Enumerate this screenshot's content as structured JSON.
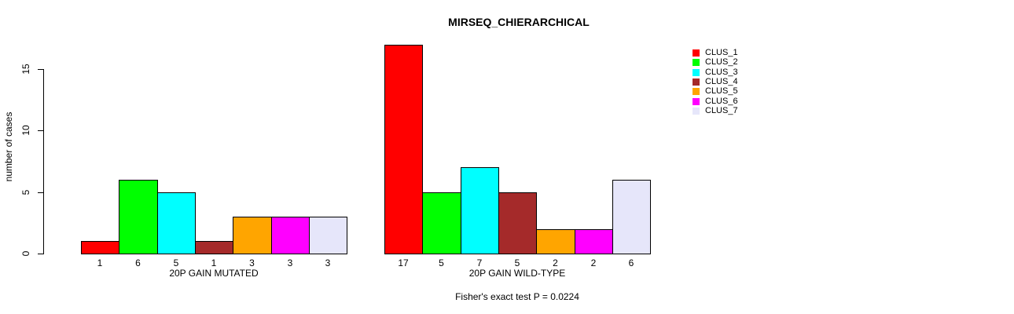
{
  "chart_data": {
    "type": "bar",
    "title": "MIRSEQ_CHIERARCHICAL",
    "ylabel": "number of cases",
    "xlabel": "",
    "yticks": [
      0,
      5,
      10,
      15
    ],
    "ylim": [
      0,
      15
    ],
    "grid": false,
    "legend_position": "right",
    "bar_value_labels_shown": true,
    "categories": [
      "20P GAIN MUTATED",
      "20P GAIN WILD-TYPE"
    ],
    "series": [
      {
        "name": "CLUS_1",
        "color": "#FF0000",
        "values": [
          1,
          17
        ]
      },
      {
        "name": "CLUS_2",
        "color": "#00FF00",
        "values": [
          6,
          5
        ]
      },
      {
        "name": "CLUS_3",
        "color": "#00FFFF",
        "values": [
          5,
          7
        ]
      },
      {
        "name": "CLUS_4",
        "color": "#A52A2A",
        "values": [
          1,
          5
        ]
      },
      {
        "name": "CLUS_5",
        "color": "#FFA500",
        "values": [
          3,
          2
        ]
      },
      {
        "name": "CLUS_6",
        "color": "#FF00FF",
        "values": [
          3,
          2
        ]
      },
      {
        "name": "CLUS_7",
        "color": "#E6E6FA",
        "values": [
          3,
          6
        ]
      }
    ],
    "annotation": "Fisher's exact test P = 0.0224",
    "axis_color": "#000000",
    "background_color": "#FFFFFF"
  }
}
